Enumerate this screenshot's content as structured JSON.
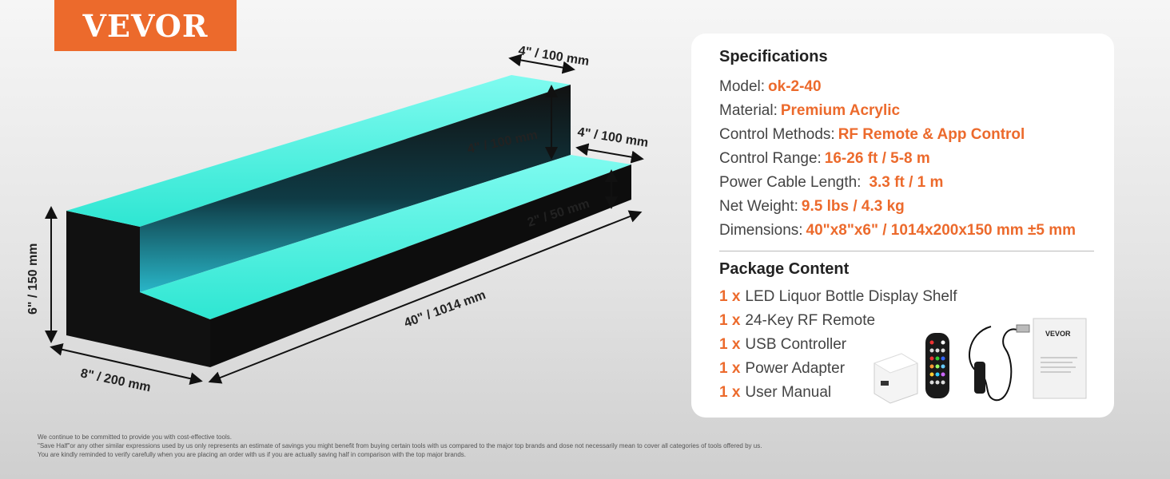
{
  "brand": {
    "logo_text": "VEVOR",
    "accent": "#ec6a2c"
  },
  "product": {
    "dimensions": {
      "top_depth": "4\" / 100 mm",
      "upper_riser": "4\" / 100 mm",
      "step_depth": "4\" / 100 mm",
      "lower_riser": "2\" / 50 mm",
      "length": "40\" / 1014 mm",
      "height": "6\" / 150 mm",
      "depth": "8\" / 200 mm"
    },
    "led_color": "#3df0dc"
  },
  "specs": {
    "title": "Specifications",
    "items": [
      {
        "label": "Model:",
        "value": "ok-2-40"
      },
      {
        "label": "Material:",
        "value": "Premium Acrylic"
      },
      {
        "label": "Control Methods:",
        "value": "RF Remote & App Control"
      },
      {
        "label": "Control Range:",
        "value": "16-26 ft / 5-8 m"
      },
      {
        "label": "Power Cable Length:",
        "value": "3.3 ft / 1 m"
      },
      {
        "label": "Net Weight:",
        "value": "9.5 lbs / 4.3 kg"
      },
      {
        "label": "Dimensions:",
        "value": "40\"x8\"x6\" / 1014x200x150 mm ±5 mm"
      }
    ]
  },
  "package": {
    "title": "Package Content",
    "items": [
      {
        "qty": "1 x",
        "name": "LED Liquor Bottle Display Shelf"
      },
      {
        "qty": "1 x",
        "name": "24-Key RF Remote"
      },
      {
        "qty": "1 x",
        "name": "USB Controller"
      },
      {
        "qty": "1 x",
        "name": "Power Adapter"
      },
      {
        "qty": "1 x",
        "name": "User Manual"
      }
    ],
    "manual_logo": "VEVOR"
  },
  "footer": {
    "lines": [
      "We continue to be committed to provide you with cost-effective tools.",
      "\"Save Half\"or any other similar expressions used by us only represents an estimate of savings you might benefit from buying certain tools with us compared to the major top brands and dose not necessarily mean to cover all categories of tools offered by us.",
      "You are kindly reminded to verify carefully when you are placing an order with us if you are actually saving half in comparison with the top major brands."
    ]
  }
}
